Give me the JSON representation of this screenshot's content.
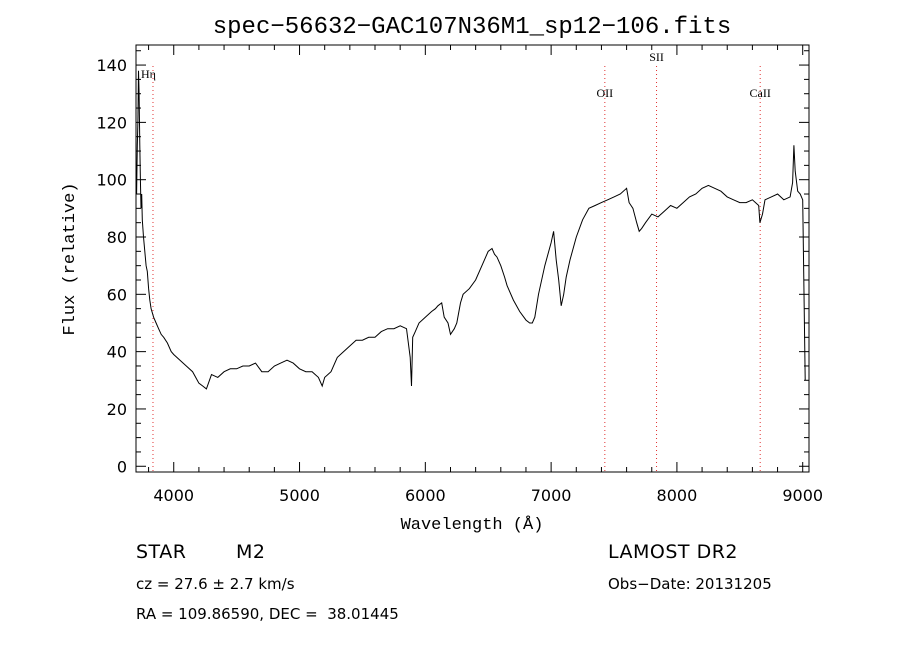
{
  "chart_data": {
    "type": "line",
    "title": "spec−56632−GAC107N36M1_sp12−106.fits",
    "xlabel": "Wavelength (Å)",
    "ylabel": "Flux (relative)",
    "xlim": [
      3700,
      9050
    ],
    "ylim": [
      -2,
      147
    ],
    "xticks": [
      4000,
      5000,
      6000,
      7000,
      8000,
      9000
    ],
    "yticks": [
      0,
      20,
      40,
      60,
      80,
      100,
      120,
      140
    ],
    "grid": false,
    "series": [
      {
        "x": [
          3700,
          3705,
          3710,
          3715,
          3720,
          3725,
          3730,
          3735,
          3740,
          3745,
          3750,
          3760,
          3770,
          3780,
          3790,
          3800,
          3810,
          3820,
          3840,
          3860,
          3880,
          3900,
          3920,
          3950,
          3980,
          4000,
          4050,
          4100,
          4150,
          4200,
          4230,
          4260,
          4300,
          4350,
          4400,
          4450,
          4500,
          4550,
          4600,
          4650,
          4700,
          4750,
          4800,
          4850,
          4900,
          4950,
          5000,
          5050,
          5100,
          5150,
          5180,
          5200,
          5250,
          5300,
          5350,
          5400,
          5450,
          5500,
          5550,
          5600,
          5650,
          5700,
          5750,
          5800,
          5850,
          5880,
          5890,
          5900,
          5920,
          5950,
          6000,
          6050,
          6080,
          6100,
          6130,
          6150,
          6180,
          6200,
          6230,
          6250,
          6280,
          6300,
          6350,
          6400,
          6450,
          6500,
          6530,
          6550,
          6570,
          6600,
          6630,
          6650,
          6700,
          6750,
          6800,
          6830,
          6850,
          6870,
          6900,
          6950,
          7000,
          7020,
          7040,
          7060,
          7080,
          7100,
          7120,
          7150,
          7200,
          7250,
          7300,
          7350,
          7400,
          7450,
          7500,
          7550,
          7600,
          7620,
          7650,
          7680,
          7700,
          7720,
          7750,
          7800,
          7850,
          7900,
          7950,
          8000,
          8050,
          8100,
          8150,
          8200,
          8250,
          8300,
          8350,
          8400,
          8450,
          8500,
          8550,
          8600,
          8650,
          8660,
          8680,
          8700,
          8750,
          8800,
          8850,
          8900,
          8920,
          8930,
          8940,
          8960,
          8980,
          9000,
          9020
        ],
        "y": [
          100,
          95,
          112,
          120,
          138,
          130,
          112,
          100,
          90,
          95,
          86,
          80,
          75,
          70,
          68,
          62,
          58,
          55,
          52,
          50,
          48,
          46,
          45,
          43,
          40,
          39,
          37,
          35,
          33,
          29,
          28,
          27,
          32,
          31,
          33,
          34,
          34,
          35,
          35,
          36,
          33,
          33,
          35,
          36,
          37,
          36,
          34,
          33,
          33,
          31,
          28,
          31,
          33,
          38,
          40,
          42,
          44,
          44,
          45,
          45,
          47,
          48,
          48,
          49,
          48,
          38,
          28,
          45,
          47,
          50,
          52,
          54,
          55,
          56,
          57,
          52,
          50,
          46,
          48,
          50,
          57,
          60,
          62,
          65,
          70,
          75,
          76,
          74,
          73,
          70,
          66,
          63,
          58,
          54,
          51,
          50,
          50,
          52,
          60,
          70,
          78,
          82,
          72,
          65,
          56,
          60,
          66,
          72,
          80,
          86,
          90,
          91,
          92,
          93,
          94,
          95,
          97,
          92,
          90,
          85,
          82,
          83,
          85,
          88,
          87,
          89,
          91,
          90,
          92,
          94,
          95,
          97,
          98,
          97,
          96,
          94,
          93,
          92,
          92,
          93,
          91,
          85,
          88,
          93,
          94,
          95,
          93,
          94,
          99,
          112,
          103,
          96,
          95,
          93,
          30
        ]
      }
    ],
    "line_markers": [
      {
        "label": "Hη",
        "x": 3835
      },
      {
        "label": "OII",
        "x": 7427
      },
      {
        "label": "SII",
        "x": 7838
      },
      {
        "label": "CaII",
        "x": 8662
      }
    ]
  },
  "info": {
    "object_class": "STAR",
    "subclass": "M2",
    "survey": "LAMOST DR2",
    "redshift": "cz = 27.6 ± 2.7 km/s",
    "obs_date": "Obs−Date: 20131205",
    "coordinates": "RA = 109.86590, DEC =  38.01445"
  },
  "colors": {
    "spectrum": "#000000",
    "marker_line": "#e03030",
    "axes": "#000000"
  }
}
